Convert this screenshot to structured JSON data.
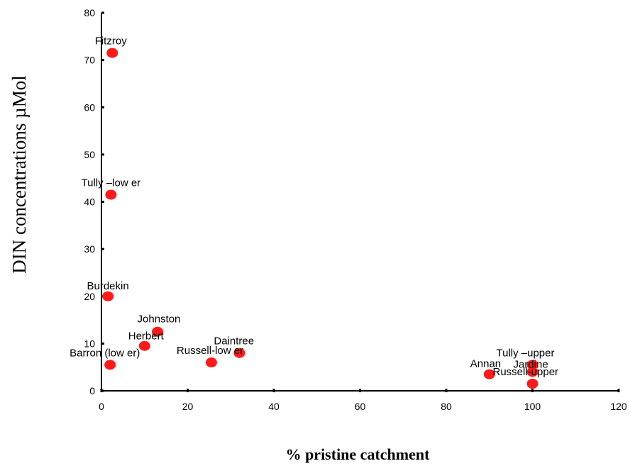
{
  "chart_data": {
    "type": "scatter",
    "title": "",
    "xlabel": "% pristine catchment",
    "ylabel": "DIN concentrations µMol",
    "xlim": [
      0,
      120
    ],
    "ylim": [
      0,
      80
    ],
    "xticks": [
      0,
      20,
      40,
      60,
      80,
      100,
      120
    ],
    "yticks": [
      0,
      10,
      20,
      30,
      40,
      50,
      60,
      70,
      80
    ],
    "grid": false,
    "legend": "none",
    "marker_color": "#ff1a1a",
    "points": [
      {
        "label": "Fitzroy",
        "x": 2.5,
        "y": 71.5
      },
      {
        "label": "Tully –low er",
        "x": 2.2,
        "y": 41.5
      },
      {
        "label": "Burdekin",
        "x": 1.5,
        "y": 20
      },
      {
        "label": "Johnston",
        "x": 13,
        "y": 12.5
      },
      {
        "label": "Herbert",
        "x": 10,
        "y": 9.5
      },
      {
        "label": "Barron (low er)",
        "x": 2,
        "y": 5.5
      },
      {
        "label": "Russell-low er",
        "x": 25.5,
        "y": 6
      },
      {
        "label": "Daintree",
        "x": 32,
        "y": 8
      },
      {
        "label": "Annan",
        "x": 90,
        "y": 3.5
      },
      {
        "label": "Tully –upper",
        "x": 100,
        "y": 5.5
      },
      {
        "label": "Jardine",
        "x": 100,
        "y": 4
      },
      {
        "label": "Russell-upper",
        "x": 100,
        "y": 1.5
      }
    ]
  }
}
